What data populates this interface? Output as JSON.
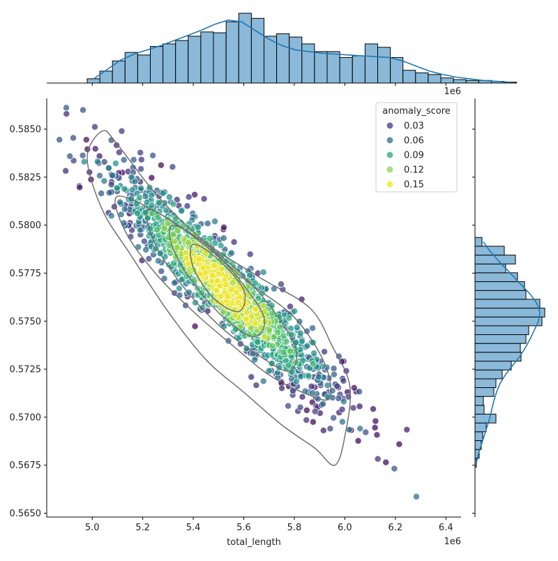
{
  "chart_data": {
    "type": "scatter",
    "title": "",
    "xlabel": "total_length",
    "ylabel": "",
    "x_offset_label": "1e6",
    "top_offset_label": "1e6",
    "xlim": [
      4.82,
      6.46
    ],
    "ylim": [
      0.5648,
      0.5866
    ],
    "x_ticks": [
      "5.0",
      "5.2",
      "5.4",
      "5.6",
      "5.8",
      "6.0",
      "6.2",
      "6.4"
    ],
    "y_ticks": [
      "0.5650",
      "0.5675",
      "0.5700",
      "0.5725",
      "0.5750",
      "0.5775",
      "0.5800",
      "0.5825",
      "0.5850"
    ],
    "legend": {
      "title": "anomaly_score",
      "placement": "top-right",
      "entries": [
        {
          "label": "0.03",
          "color": "#46337f"
        },
        {
          "label": "0.06",
          "color": "#31698f"
        },
        {
          "label": "0.09",
          "color": "#2ba880"
        },
        {
          "label": "0.12",
          "color": "#8fd052"
        },
        {
          "label": "0.15",
          "color": "#efe51c"
        }
      ]
    },
    "colormap": [
      "#440154",
      "#46337f",
      "#31698f",
      "#21918c",
      "#2ba880",
      "#5ec962",
      "#b5de2b",
      "#fde725"
    ],
    "hue_range": [
      0.0,
      0.17
    ],
    "point_cloud": {
      "n": 1400,
      "x_mean": 5.52,
      "x_sd": 0.23,
      "slope": -0.0125,
      "y_at_mean": 0.5768,
      "y_sd": 0.00115
    },
    "kde_levels": [
      [
        [
          4.98,
          0.5835
        ],
        [
          5.04,
          0.5849
        ],
        [
          5.1,
          0.5842
        ],
        [
          5.26,
          0.5815
        ],
        [
          5.45,
          0.5791
        ],
        [
          5.66,
          0.5773
        ],
        [
          5.86,
          0.5757
        ],
        [
          5.95,
          0.5737
        ],
        [
          6.02,
          0.5716
        ],
        [
          6.0,
          0.569
        ],
        [
          5.96,
          0.5675
        ],
        [
          5.88,
          0.5684
        ],
        [
          5.75,
          0.5696
        ],
        [
          5.6,
          0.5713
        ],
        [
          5.45,
          0.573
        ],
        [
          5.3,
          0.5755
        ],
        [
          5.15,
          0.5785
        ],
        [
          5.04,
          0.5808
        ],
        [
          4.98,
          0.5835
        ]
      ],
      [
        [
          5.1,
          0.5815
        ],
        [
          5.28,
          0.5805
        ],
        [
          5.44,
          0.579
        ],
        [
          5.62,
          0.577
        ],
        [
          5.8,
          0.5752
        ],
        [
          5.92,
          0.5728
        ],
        [
          5.94,
          0.571
        ],
        [
          5.85,
          0.5712
        ],
        [
          5.7,
          0.5722
        ],
        [
          5.55,
          0.5738
        ],
        [
          5.4,
          0.5755
        ],
        [
          5.25,
          0.5775
        ],
        [
          5.13,
          0.5797
        ],
        [
          5.1,
          0.5815
        ]
      ],
      [
        [
          5.22,
          0.5808
        ],
        [
          5.36,
          0.5798
        ],
        [
          5.5,
          0.5785
        ],
        [
          5.66,
          0.5765
        ],
        [
          5.8,
          0.5738
        ],
        [
          5.78,
          0.5724
        ],
        [
          5.65,
          0.5733
        ],
        [
          5.5,
          0.5748
        ],
        [
          5.36,
          0.5768
        ],
        [
          5.25,
          0.579
        ],
        [
          5.22,
          0.5808
        ]
      ],
      [
        [
          5.32,
          0.58
        ],
        [
          5.46,
          0.5789
        ],
        [
          5.58,
          0.5772
        ],
        [
          5.68,
          0.5752
        ],
        [
          5.64,
          0.5742
        ],
        [
          5.52,
          0.5752
        ],
        [
          5.4,
          0.577
        ],
        [
          5.32,
          0.5788
        ],
        [
          5.32,
          0.58
        ]
      ],
      [
        [
          5.4,
          0.579
        ],
        [
          5.5,
          0.5782
        ],
        [
          5.6,
          0.5766
        ],
        [
          5.58,
          0.5755
        ],
        [
          5.48,
          0.5762
        ],
        [
          5.4,
          0.5778
        ],
        [
          5.4,
          0.579
        ]
      ]
    ],
    "top_histogram": {
      "bin_start": 4.98,
      "bin_width": 0.05,
      "counts": [
        5,
        14,
        26,
        36,
        33,
        43,
        46,
        50,
        55,
        60,
        59,
        72,
        82,
        76,
        55,
        58,
        54,
        46,
        37,
        37,
        30,
        32,
        46,
        42,
        30,
        15,
        12,
        10,
        6,
        4,
        3,
        3,
        2,
        1
      ],
      "kde_y": [
        5,
        16,
        27,
        34,
        39,
        44,
        50,
        56,
        62,
        69,
        74,
        72,
        62,
        52,
        44,
        39,
        37,
        35,
        34,
        33,
        32,
        31,
        30,
        26,
        20,
        14,
        10,
        7,
        5,
        3,
        2,
        1
      ]
    },
    "right_histogram": {
      "bin_start": 0.5674,
      "bin_width": 0.00046,
      "counts": [
        2,
        6,
        9,
        11,
        16,
        30,
        13,
        12,
        27,
        30,
        39,
        52,
        66,
        65,
        73,
        77,
        96,
        100,
        93,
        73,
        71,
        61,
        44,
        58,
        42,
        10
      ],
      "kde_y": [
        2,
        5,
        9,
        13,
        17,
        21,
        24,
        27,
        31,
        36,
        44,
        54,
        64,
        72,
        79,
        85,
        91,
        93,
        89,
        80,
        68,
        56,
        44,
        32,
        21,
        12
      ]
    }
  }
}
